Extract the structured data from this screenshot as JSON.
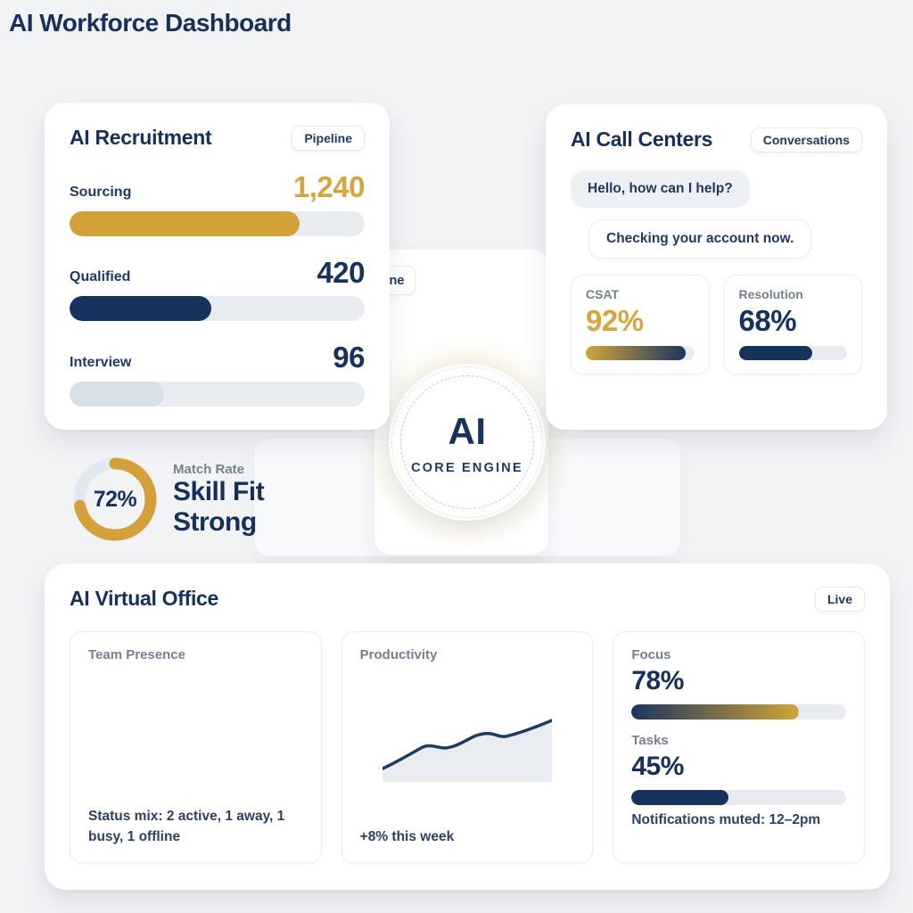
{
  "page": {
    "title": "AI Workforce Dashboard"
  },
  "colors": {
    "navy": "#16325e",
    "gold": "#d4a139",
    "track": "#e8ecf1",
    "page_bg": "#f2f3f5"
  },
  "recruitment": {
    "title": "AI Recruitment",
    "badge": "Pipeline",
    "rows": [
      {
        "label": "Sourcing",
        "value": "1,240",
        "pct": 78
      },
      {
        "label": "Qualified",
        "value": "420",
        "pct": 48
      },
      {
        "label": "Interview",
        "value": "96",
        "pct": 32
      }
    ]
  },
  "call_centers": {
    "title": "AI Call Centers",
    "badge": "Conversations",
    "messages": [
      {
        "text": "Hello, how can I help?"
      },
      {
        "text": "Checking your account now."
      }
    ],
    "stats": [
      {
        "label": "CSAT",
        "value": "92%",
        "pct": 92
      },
      {
        "label": "Resolution",
        "value": "68%",
        "pct": 68
      }
    ]
  },
  "core_engine": {
    "label": "AI",
    "sublabel": "CORE ENGINE",
    "clipped_badge_text": "ne"
  },
  "match_rate": {
    "label": "Match Rate",
    "value": "72%",
    "pct": 72,
    "line1": "Skill Fit",
    "line2": "Strong"
  },
  "virtual_office": {
    "title": "AI Virtual Office",
    "badge": "Live",
    "team": {
      "label": "Team Presence",
      "status": "Status mix: 2 active, 1 away, 1 busy, 1 offline"
    },
    "productivity": {
      "label": "Productivity",
      "note": "+8% this week"
    },
    "focus": {
      "label": "Focus",
      "value": "78%",
      "pct": 78
    },
    "tasks": {
      "label": "Tasks",
      "value": "45%",
      "pct": 45
    },
    "footnote": "Notifications muted: 12–2pm"
  },
  "chart_data": {
    "type": "area",
    "title": "Productivity",
    "x": [
      0,
      1,
      2,
      3,
      4,
      5,
      6
    ],
    "values": [
      18,
      46,
      45,
      61,
      64,
      60,
      81
    ],
    "ylim": [
      0,
      100
    ],
    "annotation": "+8% this week",
    "grid": false,
    "legend": false
  }
}
